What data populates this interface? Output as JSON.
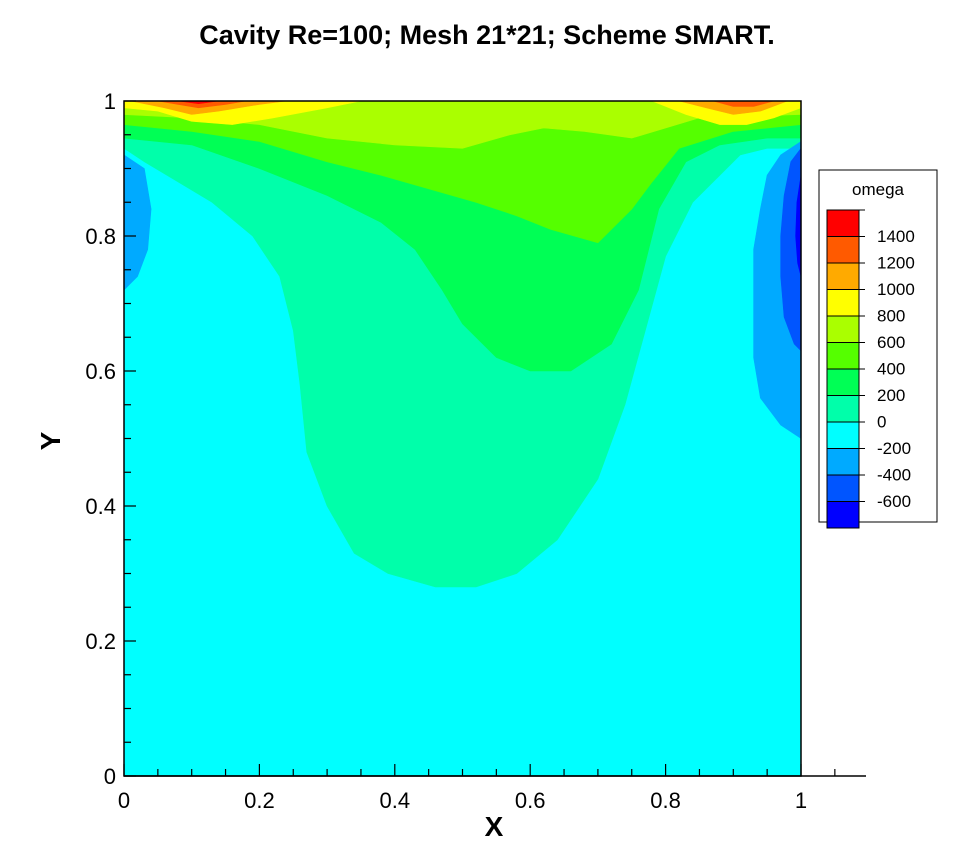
{
  "chart_data": {
    "type": "heatmap",
    "title": "Cavity Re=100; Mesh 21*21; Scheme SMART.",
    "xlabel": "X",
    "ylabel": "Y",
    "xlim": [
      0,
      1
    ],
    "ylim": [
      0,
      1
    ],
    "x_ticks": [
      0,
      0.2,
      0.4,
      0.6,
      0.8,
      1
    ],
    "x_tick_labels": [
      "0",
      "0.2",
      "0.4",
      "0.6",
      "0.8",
      "1"
    ],
    "y_ticks": [
      0,
      0.2,
      0.4,
      0.6,
      0.8,
      1
    ],
    "y_tick_labels": [
      "0",
      "0.2",
      "0.4",
      "0.6",
      "0.8",
      "1"
    ],
    "grid": false,
    "legend": {
      "title": "omega",
      "placement": "right",
      "levels": [
        {
          "label": "1400",
          "color": "#ff0000"
        },
        {
          "label": "1200",
          "color": "#ff5a00"
        },
        {
          "label": "1000",
          "color": "#ffaa00"
        },
        {
          "label": "800",
          "color": "#ffff00"
        },
        {
          "label": "600",
          "color": "#aaff00"
        },
        {
          "label": "400",
          "color": "#55ff00"
        },
        {
          "label": "200",
          "color": "#00ff55"
        },
        {
          "label": "0",
          "color": "#00ffaa"
        },
        {
          "label": "-200",
          "color": "#00ffff"
        },
        {
          "label": "-400",
          "color": "#00aaff"
        },
        {
          "label": "-600",
          "color": "#0055ff"
        },
        {
          "label": "",
          "color": "#0000ff"
        }
      ]
    },
    "regions": [
      {
        "level": "-200",
        "color": "#00ffff",
        "points": [
          [
            0,
            0
          ],
          [
            1,
            0
          ],
          [
            1,
            1
          ],
          [
            0,
            1
          ]
        ]
      },
      {
        "level": "0",
        "color": "#00ffaa",
        "points": [
          [
            0,
            1
          ],
          [
            0,
            0.93
          ],
          [
            0.03,
            0.91
          ],
          [
            0.08,
            0.88
          ],
          [
            0.13,
            0.85
          ],
          [
            0.19,
            0.8
          ],
          [
            0.23,
            0.74
          ],
          [
            0.25,
            0.66
          ],
          [
            0.26,
            0.58
          ],
          [
            0.27,
            0.48
          ],
          [
            0.3,
            0.4
          ],
          [
            0.34,
            0.33
          ],
          [
            0.39,
            0.3
          ],
          [
            0.46,
            0.28
          ],
          [
            0.52,
            0.28
          ],
          [
            0.58,
            0.3
          ],
          [
            0.64,
            0.35
          ],
          [
            0.7,
            0.44
          ],
          [
            0.74,
            0.55
          ],
          [
            0.77,
            0.66
          ],
          [
            0.8,
            0.77
          ],
          [
            0.84,
            0.85
          ],
          [
            0.88,
            0.89
          ],
          [
            0.91,
            0.92
          ],
          [
            0.95,
            0.93
          ],
          [
            1,
            0.93
          ],
          [
            1,
            1
          ]
        ]
      },
      {
        "level": "200",
        "color": "#00ff55",
        "points": [
          [
            0,
            1
          ],
          [
            0,
            0.945
          ],
          [
            0.1,
            0.935
          ],
          [
            0.2,
            0.9
          ],
          [
            0.3,
            0.86
          ],
          [
            0.38,
            0.82
          ],
          [
            0.43,
            0.78
          ],
          [
            0.47,
            0.72
          ],
          [
            0.5,
            0.67
          ],
          [
            0.55,
            0.62
          ],
          [
            0.6,
            0.6
          ],
          [
            0.66,
            0.6
          ],
          [
            0.72,
            0.64
          ],
          [
            0.76,
            0.72
          ],
          [
            0.79,
            0.84
          ],
          [
            0.83,
            0.91
          ],
          [
            0.88,
            0.935
          ],
          [
            0.95,
            0.945
          ],
          [
            1,
            0.945
          ],
          [
            1,
            1
          ]
        ]
      },
      {
        "level": "400",
        "color": "#55ff00",
        "points": [
          [
            0,
            1
          ],
          [
            0,
            0.965
          ],
          [
            0.1,
            0.955
          ],
          [
            0.2,
            0.94
          ],
          [
            0.3,
            0.91
          ],
          [
            0.38,
            0.89
          ],
          [
            0.45,
            0.87
          ],
          [
            0.52,
            0.85
          ],
          [
            0.58,
            0.83
          ],
          [
            0.63,
            0.81
          ],
          [
            0.7,
            0.79
          ],
          [
            0.75,
            0.84
          ],
          [
            0.78,
            0.88
          ],
          [
            0.82,
            0.93
          ],
          [
            0.9,
            0.955
          ],
          [
            1,
            0.965
          ],
          [
            1,
            1
          ]
        ]
      },
      {
        "level": "600",
        "color": "#aaff00",
        "points": [
          [
            0,
            1
          ],
          [
            0,
            0.98
          ],
          [
            0.1,
            0.975
          ],
          [
            0.2,
            0.965
          ],
          [
            0.3,
            0.945
          ],
          [
            0.4,
            0.935
          ],
          [
            0.5,
            0.93
          ],
          [
            0.57,
            0.95
          ],
          [
            0.62,
            0.96
          ],
          [
            0.68,
            0.955
          ],
          [
            0.75,
            0.945
          ],
          [
            0.85,
            0.975
          ],
          [
            1,
            0.98
          ],
          [
            1,
            1
          ]
        ]
      },
      {
        "level": "800",
        "color": "#ffff00",
        "points": [
          [
            0,
            1
          ],
          [
            0,
            0.99
          ],
          [
            0.05,
            0.985
          ],
          [
            0.1,
            0.97
          ],
          [
            0.16,
            0.965
          ],
          [
            0.22,
            0.975
          ],
          [
            0.3,
            0.99
          ],
          [
            0.35,
            1
          ]
        ]
      },
      {
        "level": "800",
        "color": "#ffff00",
        "points": [
          [
            0.78,
            1
          ],
          [
            0.83,
            0.98
          ],
          [
            0.88,
            0.965
          ],
          [
            0.92,
            0.965
          ],
          [
            0.96,
            0.975
          ],
          [
            1,
            0.99
          ],
          [
            1,
            1
          ]
        ]
      },
      {
        "level": "1000",
        "color": "#ffaa00",
        "points": [
          [
            0.01,
            1
          ],
          [
            0.06,
            0.99
          ],
          [
            0.1,
            0.98
          ],
          [
            0.14,
            0.985
          ],
          [
            0.2,
            0.995
          ],
          [
            0.24,
            1
          ]
        ]
      },
      {
        "level": "1000",
        "color": "#ffaa00",
        "points": [
          [
            0.82,
            1
          ],
          [
            0.86,
            0.99
          ],
          [
            0.9,
            0.98
          ],
          [
            0.94,
            0.985
          ],
          [
            0.98,
            1
          ]
        ]
      },
      {
        "level": "1200",
        "color": "#ff5a00",
        "points": [
          [
            0.05,
            1
          ],
          [
            0.08,
            0.995
          ],
          [
            0.11,
            0.99
          ],
          [
            0.15,
            0.995
          ],
          [
            0.18,
            1
          ]
        ]
      },
      {
        "level": "1200",
        "color": "#ff5a00",
        "points": [
          [
            0.87,
            1
          ],
          [
            0.9,
            0.992
          ],
          [
            0.93,
            0.992
          ],
          [
            0.96,
            1
          ]
        ]
      },
      {
        "level": "1400",
        "color": "#ff0000",
        "points": [
          [
            0.08,
            1
          ],
          [
            0.11,
            0.996
          ],
          [
            0.14,
            1
          ]
        ]
      },
      {
        "level": "-400",
        "color": "#00aaff",
        "points": [
          [
            0,
            0.92
          ],
          [
            0.03,
            0.9
          ],
          [
            0.04,
            0.84
          ],
          [
            0.035,
            0.78
          ],
          [
            0.02,
            0.74
          ],
          [
            0,
            0.72
          ]
        ]
      },
      {
        "level": "-400",
        "color": "#00aaff",
        "points": [
          [
            1,
            0.94
          ],
          [
            0.97,
            0.92
          ],
          [
            0.95,
            0.89
          ],
          [
            0.94,
            0.84
          ],
          [
            0.93,
            0.78
          ],
          [
            0.93,
            0.7
          ],
          [
            0.93,
            0.62
          ],
          [
            0.94,
            0.56
          ],
          [
            0.97,
            0.52
          ],
          [
            1,
            0.5
          ]
        ]
      },
      {
        "level": "-600",
        "color": "#0055ff",
        "points": [
          [
            1,
            0.93
          ],
          [
            0.985,
            0.91
          ],
          [
            0.975,
            0.86
          ],
          [
            0.97,
            0.8
          ],
          [
            0.97,
            0.74
          ],
          [
            0.975,
            0.68
          ],
          [
            0.99,
            0.64
          ],
          [
            1,
            0.63
          ]
        ]
      },
      {
        "level": "-800",
        "color": "#0000ff",
        "points": [
          [
            1,
            0.89
          ],
          [
            0.994,
            0.85
          ],
          [
            0.992,
            0.8
          ],
          [
            0.995,
            0.76
          ],
          [
            1,
            0.74
          ]
        ]
      }
    ]
  }
}
